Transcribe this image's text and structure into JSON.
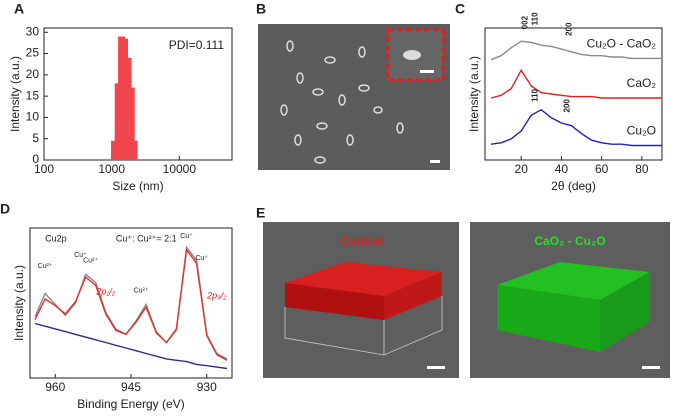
{
  "chart_data": [
    {
      "type": "bar",
      "label": "A",
      "xlabel": "Size (nm)",
      "ylabel": "Intensity (a.u.)",
      "annotation": "PDI=0.111",
      "x": [
        1100,
        1250,
        1400,
        1550,
        1750,
        1950,
        2150
      ],
      "values": [
        4.5,
        18,
        29,
        28.5,
        24,
        17,
        4.5
      ],
      "color": "#f0474f",
      "log_x": true,
      "xlim": [
        100,
        60000
      ],
      "xticks": [
        100,
        1000,
        10000
      ],
      "ylim": [
        0,
        31
      ],
      "yticks": [
        0,
        5,
        10,
        15,
        20,
        25,
        30
      ]
    },
    {
      "type": "line",
      "label": "C",
      "xlabel": "2θ (deg)",
      "ylabel": "Intensity (a.u.)",
      "x": [
        5,
        10,
        15,
        20,
        25,
        30,
        35,
        40,
        45,
        50,
        55,
        60,
        65,
        70,
        75,
        80,
        85,
        90
      ],
      "series": [
        {
          "name": "Cu₂O - CaO₂",
          "color": "#8a8a8a",
          "values": [
            7.6,
            7.9,
            8.5,
            9.0,
            8.9,
            8.7,
            8.6,
            8.4,
            8.2,
            8.0,
            7.9,
            7.9,
            7.8,
            7.8,
            7.7,
            7.7,
            7.7,
            7.7
          ]
        },
        {
          "name": "CaO₂",
          "color": "#e02020",
          "values": [
            4.7,
            4.9,
            5.4,
            6.8,
            5.6,
            5.1,
            5.0,
            4.9,
            4.8,
            4.8,
            4.8,
            4.7,
            4.7,
            4.7,
            4.7,
            4.7,
            4.7,
            4.7
          ]
        },
        {
          "name": "Cu₂O",
          "color": "#2020c0",
          "values": [
            1.2,
            1.3,
            1.6,
            2.2,
            3.4,
            3.8,
            3.2,
            2.8,
            2.6,
            2.0,
            1.5,
            1.3,
            1.2,
            1.2,
            1.1,
            1.1,
            1.1,
            1.1
          ]
        }
      ],
      "peak_labels": [
        "002",
        "110",
        "200",
        "110",
        "200"
      ],
      "xlim": [
        2,
        90
      ],
      "xticks": [
        20,
        40,
        60,
        80
      ],
      "ylim": [
        0,
        10
      ]
    },
    {
      "type": "line",
      "label": "D",
      "xlabel": "Binding Energy (eV)",
      "ylabel": "Intensity (a.u.)",
      "x": [
        964,
        962,
        960,
        958,
        956,
        954,
        952,
        950,
        948,
        946,
        944,
        942,
        940,
        938,
        936,
        934,
        932,
        930,
        928,
        926
      ],
      "series": [
        {
          "color": "#8a8a8a",
          "values": [
            4.5,
            6.2,
            5.4,
            4.6,
            5.5,
            7.6,
            7.0,
            4.8,
            3.6,
            3.2,
            4.2,
            5.4,
            3.4,
            2.6,
            3.5,
            9.6,
            8.6,
            3.2,
            1.8,
            1.4
          ]
        },
        {
          "color": "#e03030",
          "values": [
            4.3,
            5.8,
            5.3,
            4.7,
            5.6,
            7.4,
            6.8,
            4.7,
            3.5,
            3.2,
            4.1,
            5.2,
            3.3,
            2.6,
            3.6,
            9.4,
            8.4,
            3.1,
            1.7,
            1.3
          ]
        },
        {
          "color": "#2a2a9a",
          "values": [
            4.0,
            3.8,
            3.6,
            3.4,
            3.2,
            3.0,
            2.8,
            2.6,
            2.4,
            2.2,
            2.0,
            1.8,
            1.6,
            1.4,
            1.3,
            1.2,
            1.0,
            0.9,
            0.8,
            0.7
          ]
        }
      ],
      "annotations": [
        "Cu2p",
        "Cu⁺: Cu²⁺= 2:1",
        "Cu²⁺",
        "Cu⁺",
        "Cu²⁺",
        "Cu²⁺",
        "Cu⁺",
        "Cu⁺",
        "2p₁/₂",
        "2p₃/₂"
      ],
      "xlim": [
        965,
        925
      ],
      "xticks": [
        960,
        945,
        930
      ],
      "ylim": [
        0,
        11
      ]
    }
  ],
  "images": {
    "B": {
      "label": "B"
    },
    "E": {
      "label": "E",
      "left": "Control",
      "right": "CaO₂ - Cu₂O"
    }
  }
}
